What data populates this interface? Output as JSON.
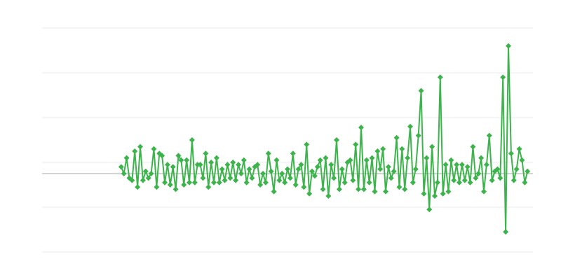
{
  "chart_data": {
    "type": "line",
    "title": "",
    "xlabel": "",
    "ylabel": "",
    "xlim": [
      -29,
      151
    ],
    "ylim": [
      -1.75,
      3.25
    ],
    "gridlines_y": [
      -1.75,
      -0.75,
      0.25,
      1.25,
      2.25,
      3.25
    ],
    "zero_line": 0,
    "grid": true,
    "marker": "diamond",
    "color": "#3cb44b",
    "grid_color": "#ebebeb",
    "zero_line_color": "#aaaaaa",
    "values": [
      0.15,
      0.0,
      0.35,
      -0.1,
      -0.15,
      0.5,
      -0.3,
      0.6,
      -0.15,
      0.05,
      -0.1,
      0.0,
      0.55,
      -0.3,
      0.45,
      0.4,
      -0.2,
      0.2,
      -0.25,
      0.15,
      -0.35,
      0.4,
      0.3,
      -0.25,
      0.3,
      -0.2,
      0.75,
      -0.2,
      0.2,
      0.2,
      -0.1,
      0.45,
      -0.3,
      0.25,
      -0.2,
      0.35,
      -0.2,
      0.1,
      -0.15,
      0.2,
      -0.1,
      0.25,
      -0.15,
      0.2,
      0.0,
      0.3,
      -0.2,
      0.1,
      -0.1,
      0.15,
      0.2,
      -0.25,
      0.0,
      -0.2,
      0.45,
      0.05,
      -0.4,
      0.3,
      -0.15,
      0.0,
      -0.2,
      0.1,
      -0.1,
      0.45,
      -0.25,
      0.1,
      0.2,
      -0.3,
      0.65,
      -0.45,
      0.05,
      -0.05,
      0.15,
      0.3,
      -0.35,
      0.35,
      -0.5,
      0.2,
      -0.1,
      0.75,
      -0.35,
      0.1,
      -0.2,
      0.25,
      0.3,
      -0.15,
      0.65,
      -0.35,
      1.03,
      -0.35,
      0.3,
      -0.2,
      0.35,
      -0.4,
      0.5,
      0.1,
      0.55,
      -0.4,
      0.15,
      -0.1,
      0.05,
      0.8,
      -0.3,
      0.55,
      -0.35,
      0.35,
      1.05,
      -0.2,
      0.1,
      0.85,
      1.85,
      -0.45,
      0.35,
      -0.8,
      0.6,
      -0.5,
      -0.2,
      2.15,
      -0.45,
      0.2,
      -0.4,
      0.3,
      -0.15,
      0.2,
      -0.2,
      0.2,
      -0.15,
      0.15,
      -0.2,
      0.6,
      -0.1,
      0.0,
      0.35,
      -0.4,
      0.2,
      0.85,
      -0.15,
      0.05,
      0.1,
      -0.1,
      2.15,
      -1.3,
      2.85,
      0.45,
      -0.15,
      0.1,
      0.55,
      0.3,
      -0.2,
      0.05
    ]
  }
}
